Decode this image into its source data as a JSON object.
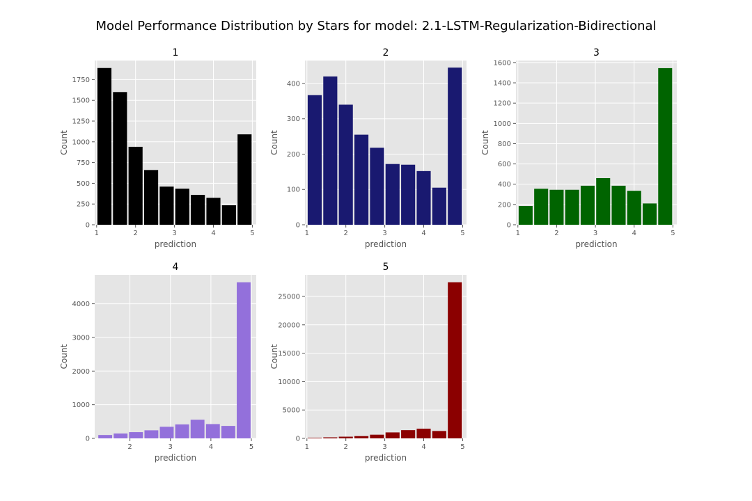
{
  "figure": {
    "title": "Model Performance Distribution by Stars for model: 2.1-LSTM-Regularization-Bidirectional"
  },
  "chart_data": [
    {
      "type": "bar",
      "title": "1",
      "xlabel": "prediction",
      "ylabel": "Count",
      "color": "#000000",
      "xlim": [
        0.95,
        5.1
      ],
      "ylim": [
        0,
        1980
      ],
      "xticks": [
        1,
        2,
        3,
        4,
        5
      ],
      "yticks": [
        0,
        250,
        500,
        750,
        1000,
        1250,
        1500,
        1750
      ],
      "bin_edges": [
        1.0,
        1.4,
        1.8,
        2.2,
        2.6,
        3.0,
        3.4,
        3.8,
        4.2,
        4.6,
        5.0
      ],
      "values": [
        1890,
        1600,
        940,
        660,
        460,
        435,
        360,
        325,
        235,
        1090
      ],
      "grid": true
    },
    {
      "type": "bar",
      "title": "2",
      "xlabel": "prediction",
      "ylabel": "Count",
      "color": "#191970",
      "xlim": [
        0.95,
        5.1
      ],
      "ylim": [
        0,
        465
      ],
      "xticks": [
        1,
        2,
        3,
        4,
        5
      ],
      "yticks": [
        0,
        100,
        200,
        300,
        400
      ],
      "bin_edges": [
        1.0,
        1.4,
        1.8,
        2.2,
        2.6,
        3.0,
        3.4,
        3.8,
        4.2,
        4.6,
        5.0
      ],
      "values": [
        367,
        420,
        340,
        255,
        218,
        172,
        170,
        152,
        105,
        445
      ],
      "grid": true
    },
    {
      "type": "bar",
      "title": "3",
      "xlabel": "prediction",
      "ylabel": "Count",
      "color": "#006400",
      "xlim": [
        0.95,
        5.1
      ],
      "ylim": [
        0,
        1620
      ],
      "xticks": [
        1,
        2,
        3,
        4,
        5
      ],
      "yticks": [
        0,
        200,
        400,
        600,
        800,
        1000,
        1200,
        1400,
        1600
      ],
      "bin_edges": [
        1.0,
        1.4,
        1.8,
        2.2,
        2.6,
        3.0,
        3.4,
        3.8,
        4.2,
        4.6,
        5.0
      ],
      "values": [
        185,
        355,
        345,
        345,
        385,
        460,
        385,
        335,
        210,
        1545
      ],
      "grid": true
    },
    {
      "type": "bar",
      "title": "4",
      "xlabel": "prediction",
      "ylabel": "Count",
      "color": "#9370db",
      "xlim": [
        1.13,
        5.12
      ],
      "ylim": [
        0,
        4860
      ],
      "xticks": [
        2,
        3,
        4,
        5
      ],
      "yticks": [
        0,
        1000,
        2000,
        3000,
        4000
      ],
      "bin_edges": [
        1.2,
        1.58,
        1.96,
        2.34,
        2.72,
        3.1,
        3.48,
        3.86,
        4.24,
        4.62,
        5.0
      ],
      "values": [
        100,
        145,
        185,
        240,
        345,
        415,
        555,
        425,
        370,
        4640
      ],
      "grid": true
    },
    {
      "type": "bar",
      "title": "5",
      "xlabel": "prediction",
      "ylabel": "Count",
      "color": "#8b0000",
      "xlim": [
        0.95,
        5.1
      ],
      "ylim": [
        0,
        28800
      ],
      "xticks": [
        1,
        2,
        3,
        4,
        5
      ],
      "yticks": [
        0,
        5000,
        10000,
        15000,
        20000,
        25000
      ],
      "bin_edges": [
        1.0,
        1.4,
        1.8,
        2.2,
        2.6,
        3.0,
        3.4,
        3.8,
        4.2,
        4.6,
        5.0
      ],
      "values": [
        100,
        180,
        300,
        400,
        650,
        1050,
        1450,
        1700,
        1300,
        27500
      ],
      "grid": true
    }
  ]
}
